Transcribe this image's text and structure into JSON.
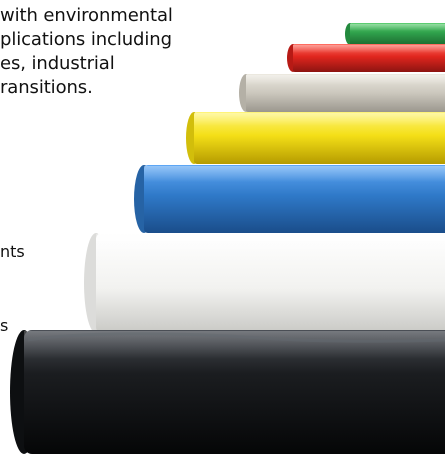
{
  "intro": {
    "lines": [
      "with environmental",
      "plications including",
      "es, industrial",
      "ransitions."
    ]
  },
  "fragments": {
    "a": "nts",
    "b": "s"
  },
  "pipes": [
    {
      "name": "green-pipe",
      "color": "#2fa14b"
    },
    {
      "name": "red-pipe",
      "color": "#e0261e"
    },
    {
      "name": "gray-pipe",
      "color": "#cbc7bd"
    },
    {
      "name": "yellow-pipe",
      "color": "#f4df17"
    },
    {
      "name": "blue-pipe",
      "color": "#2f79c8"
    },
    {
      "name": "white-pipe",
      "color": "#f2f2f0"
    },
    {
      "name": "black-pipe",
      "color": "#1b1d20"
    }
  ]
}
